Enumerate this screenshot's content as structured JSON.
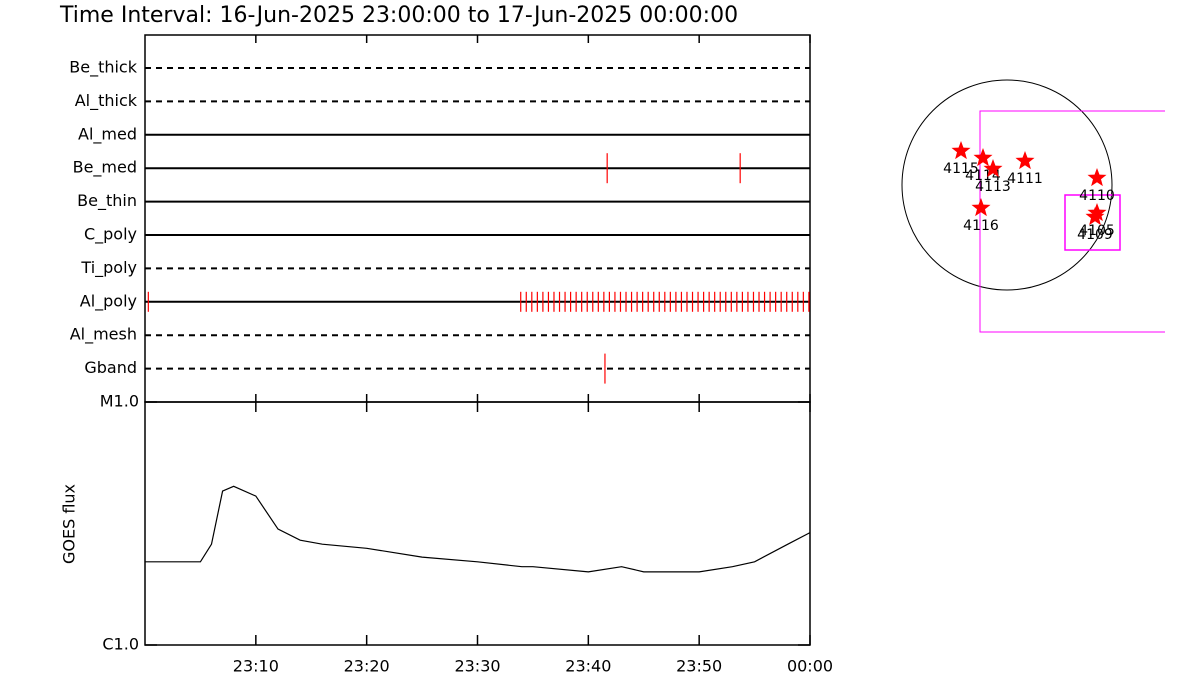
{
  "chart_data": [
    {
      "type": "timeline",
      "title": "Time Interval: 16-Jun-2025 23:00:00 to 17-Jun-2025 00:00:00",
      "categories": [
        "Be_thick",
        "Al_thick",
        "Al_med",
        "Be_med",
        "Be_thin",
        "C_poly",
        "Ti_poly",
        "Al_poly",
        "Al_mesh",
        "Gband"
      ],
      "line_styles": [
        "dashed",
        "dashed",
        "solid",
        "solid",
        "solid",
        "solid",
        "dashed",
        "solid",
        "dashed",
        "dashed"
      ],
      "events": [
        [],
        [],
        [],
        [
          41.7,
          53.7
        ],
        [],
        [],
        [],
        [
          0.3,
          33.9,
          34.4,
          34.9,
          35.4,
          35.9,
          36.4,
          36.9,
          37.4,
          37.9,
          38.4,
          38.9,
          39.4,
          39.9,
          40.4,
          40.9,
          41.4,
          41.9,
          42.4,
          42.9,
          43.4,
          43.9,
          44.4,
          44.9,
          45.4,
          45.9,
          46.4,
          46.9,
          47.4,
          47.9,
          48.4,
          48.9,
          49.4,
          49.9,
          50.4,
          50.9,
          51.4,
          51.9,
          52.4,
          52.9,
          53.4,
          53.9,
          54.4,
          54.9,
          55.4,
          55.9,
          56.4,
          56.9,
          57.4,
          57.9,
          58.4,
          58.9,
          59.4,
          59.9
        ],
        [],
        [
          41.5
        ]
      ],
      "color": "#ff0000",
      "xlim": [
        0,
        60
      ]
    },
    {
      "type": "line",
      "ylabel": "GOES flux",
      "log_scale": true,
      "color": "#000000",
      "x": [
        0,
        5,
        6,
        7,
        8,
        10,
        12,
        14,
        16,
        20,
        25,
        30,
        34,
        35,
        40,
        43,
        45,
        50,
        53,
        55,
        58,
        60
      ],
      "values": [
        2.2e-06,
        2.2e-06,
        2.6e-06,
        4.3e-06,
        4.5e-06,
        4.1e-06,
        3e-06,
        2.7e-06,
        2.6e-06,
        2.5e-06,
        2.3e-06,
        2.2e-06,
        2.1e-06,
        2.1e-06,
        2e-06,
        2.1e-06,
        2e-06,
        2e-06,
        2.1e-06,
        2.2e-06,
        2.6e-06,
        2.9e-06
      ],
      "xlim": [
        0,
        60
      ],
      "xticks": [
        {
          "value": 10,
          "label": "23:10"
        },
        {
          "value": 20,
          "label": "23:20"
        },
        {
          "value": 30,
          "label": "23:30"
        },
        {
          "value": 40,
          "label": "23:40"
        },
        {
          "value": 50,
          "label": "23:50"
        },
        {
          "value": 60,
          "label": "00:00"
        }
      ],
      "ylim": [
        1e-06,
        1e-05
      ],
      "yticks": [
        {
          "value": 1e-06,
          "label": "C1.0"
        },
        {
          "value": 1e-05,
          "label": "M1.0"
        }
      ]
    }
  ],
  "map": {
    "regions": [
      "4115",
      "4114",
      "4113",
      "4111",
      "4110",
      "4105",
      "4109",
      "4116"
    ],
    "star_color": "#ff0000",
    "box_color": "#ff00ff"
  }
}
